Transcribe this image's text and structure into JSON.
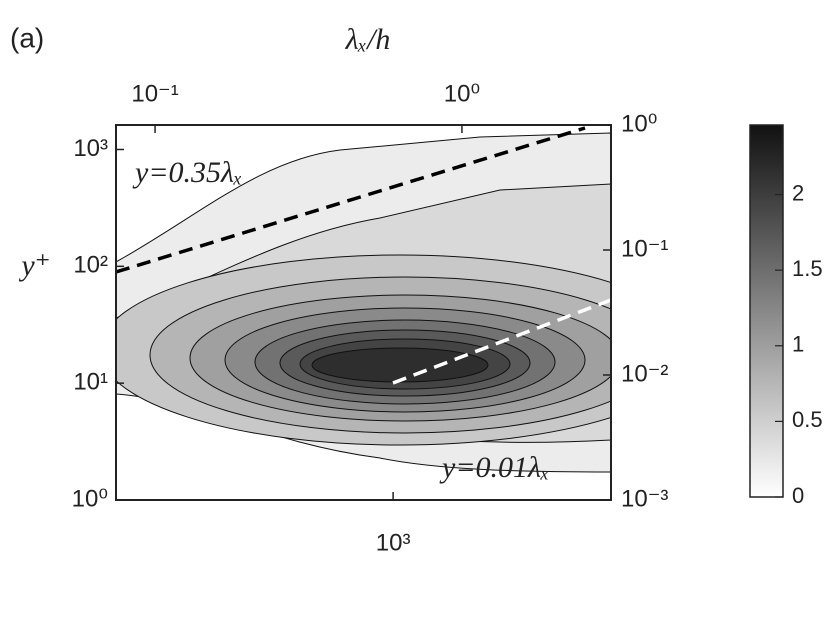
{
  "chart_data": {
    "type": "contour",
    "panel_label": "(a)",
    "log_scale": true,
    "xlim": [
      125,
      5130
    ],
    "xticks": [
      {
        "value": 1000,
        "label": "10³"
      }
    ],
    "x2label": "λₓ/h",
    "x2lim": [
      0.0746,
      3.06
    ],
    "x2ticks": [
      {
        "value": 0.1,
        "label": "10⁻¹"
      },
      {
        "value": 1,
        "label": "10⁰"
      }
    ],
    "ylabel": "y⁺",
    "ylim": [
      1,
      1620
    ],
    "yticks": [
      {
        "value": 1,
        "label": "10⁰"
      },
      {
        "value": 10,
        "label": "10¹"
      },
      {
        "value": 100,
        "label": "10²"
      },
      {
        "value": 1000,
        "label": "10³"
      }
    ],
    "y2lim": [
      0.001,
      1
    ],
    "y2ticks": [
      {
        "value": 0.001,
        "label": "10⁻³"
      },
      {
        "value": 0.01,
        "label": "10⁻²"
      },
      {
        "value": 0.1,
        "label": "10⁻¹"
      },
      {
        "value": 1,
        "label": "10⁰"
      }
    ],
    "annotations": [
      "y=0.35λₓ",
      "y=0.01λₓ"
    ],
    "colorbar": {
      "lim": [
        0,
        2.46
      ],
      "ticks": [
        0,
        0.5,
        1,
        1.5,
        2
      ]
    }
  }
}
